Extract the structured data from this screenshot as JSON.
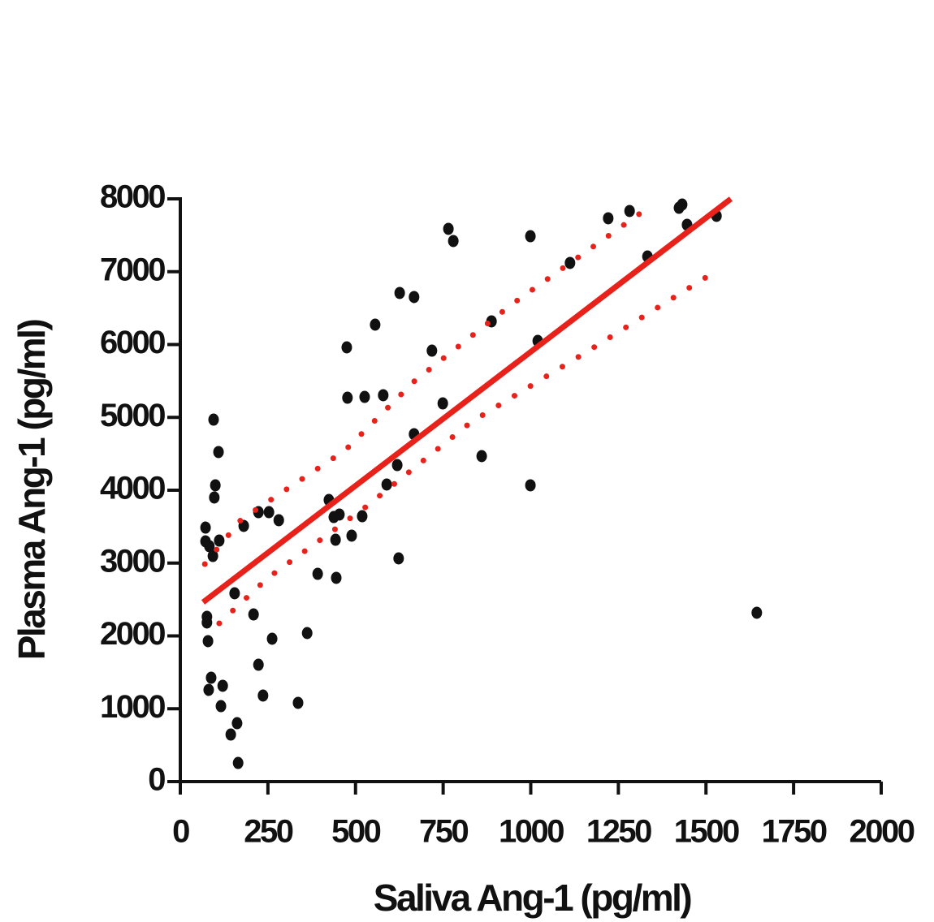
{
  "chart_data": {
    "type": "scatter",
    "x_label": "Saliva Ang-1 (pg/ml)",
    "y_label": "Plasma Ang-1 (pg/ml)",
    "xlim": [
      0,
      2000
    ],
    "xticks": [
      0,
      250,
      500,
      750,
      1000,
      1250,
      1500,
      1750,
      2000
    ],
    "ylim": [
      0,
      8000
    ],
    "yticks": [
      0,
      1000,
      2000,
      3000,
      4000,
      5000,
      6000,
      7000,
      8000
    ],
    "series": [
      {
        "kind": "scatter",
        "color": "#111111",
        "x": [
          72,
          72,
          83,
          93,
          95,
          100,
          97,
          109,
          111,
          76,
          76,
          79,
          88,
          81,
          121,
          116,
          155,
          181,
          144,
          162,
          165,
          209,
          223,
          223,
          236,
          253,
          281,
          262,
          336,
          362,
          392,
          424,
          438,
          454,
          443,
          445,
          475,
          477,
          489,
          526,
          519,
          556,
          579,
          589,
          619,
          623,
          626,
          667,
          667,
          718,
          749,
          765,
          779,
          860,
          888,
          999,
          999,
          1020,
          1112,
          1221,
          1282,
          1333,
          1423,
          1432,
          1446,
          1530,
          1645
        ],
        "values": [
          3487,
          3298,
          3231,
          3097,
          4969,
          4067,
          3900,
          4524,
          3309,
          2262,
          2184,
          1928,
          1426,
          1259,
          1315,
          1036,
          2585,
          3510,
          646,
          802,
          256,
          2295,
          3699,
          1604,
          1181,
          3699,
          3588,
          1961,
          1081,
          2039,
          2852,
          3866,
          3632,
          3666,
          3320,
          2797,
          5961,
          5270,
          3376,
          5281,
          3643,
          6273,
          5304,
          4078,
          4345,
          3064,
          6708,
          6652,
          4769,
          5916,
          5192,
          7588,
          7421,
          4468,
          6318,
          7487,
          4067,
          6050,
          7120,
          7733,
          7833,
          7209,
          7877,
          7922,
          7644,
          7766,
          2318
        ]
      },
      {
        "kind": "line",
        "style": "solid",
        "color": "#e8221b",
        "x": [
          65,
          1571
        ],
        "values": [
          2462,
          8000
        ]
      },
      {
        "kind": "line",
        "style": "dotted",
        "color": "#e8221b",
        "x": [
          70,
          174,
          470,
          667,
          946,
          1328
        ],
        "values": [
          2986,
          3599,
          4546,
          5493,
          6552,
          7855
        ]
      },
      {
        "kind": "line",
        "style": "dotted",
        "color": "#e8221b",
        "x": [
          111,
          250,
          528,
          830,
          1154,
          1525
        ],
        "values": [
          2173,
          2797,
          3766,
          4936,
          5883,
          6997
        ]
      }
    ]
  }
}
